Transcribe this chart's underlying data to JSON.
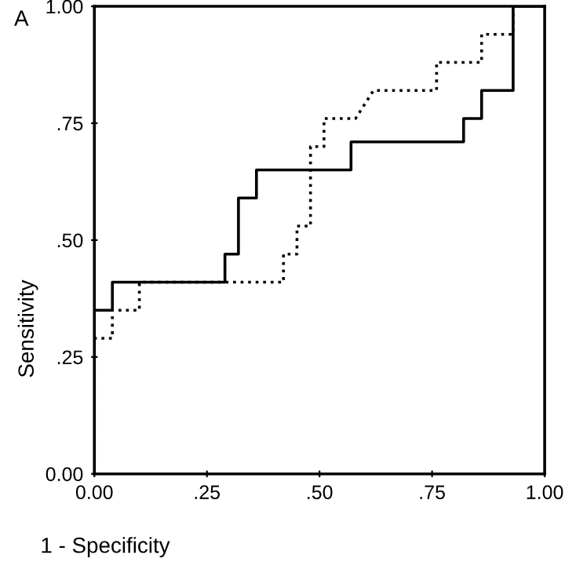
{
  "chart_data": {
    "type": "line",
    "xlabel": "1 - Specificity",
    "ylabel": "Sensitivity",
    "annotations": [
      "A"
    ],
    "series": [
      {
        "color": "#000000",
        "line_style": "solid",
        "x": [
          0,
          0,
          0.04,
          0.04,
          0.29,
          0.29,
          0.32,
          0.32,
          0.36,
          0.36,
          0.57,
          0.57,
          0.82,
          0.82,
          0.86,
          0.86,
          0.93,
          0.93,
          1
        ],
        "values": [
          0,
          0.35,
          0.35,
          0.41,
          0.41,
          0.47,
          0.47,
          0.59,
          0.59,
          0.65,
          0.65,
          0.71,
          0.71,
          0.76,
          0.76,
          0.82,
          0.82,
          1,
          1
        ]
      },
      {
        "color": "#000000",
        "line_style": "dotted",
        "x": [
          0,
          0,
          0.04,
          0.04,
          0.1,
          0.1,
          0.42,
          0.42,
          0.45,
          0.45,
          0.48,
          0.48,
          0.51,
          0.51,
          0.58,
          0.62,
          0.76,
          0.76,
          0.86,
          0.86,
          0.93,
          0.93,
          1
        ],
        "values": [
          0,
          0.29,
          0.29,
          0.35,
          0.35,
          0.41,
          0.41,
          0.47,
          0.47,
          0.53,
          0.53,
          0.7,
          0.7,
          0.76,
          0.76,
          0.82,
          0.82,
          0.88,
          0.88,
          0.94,
          0.94,
          1,
          1
        ]
      }
    ],
    "xlim": [
      0,
      1
    ],
    "ylim": [
      0,
      1
    ],
    "xticks": [
      {
        "value": 0,
        "label": "0.00"
      },
      {
        "value": 0.25,
        "label": ".25"
      },
      {
        "value": 0.5,
        "label": ".50"
      },
      {
        "value": 0.75,
        "label": ".75"
      },
      {
        "value": 1,
        "label": "1.00"
      }
    ],
    "yticks": [
      {
        "value": 0,
        "label": "0.00"
      },
      {
        "value": 0.25,
        "label": ".25"
      },
      {
        "value": 0.5,
        "label": ".50"
      },
      {
        "value": 0.75,
        "label": ".75"
      },
      {
        "value": 1,
        "label": "1.00"
      }
    ],
    "grid": false,
    "legend": false,
    "marker": "none"
  }
}
